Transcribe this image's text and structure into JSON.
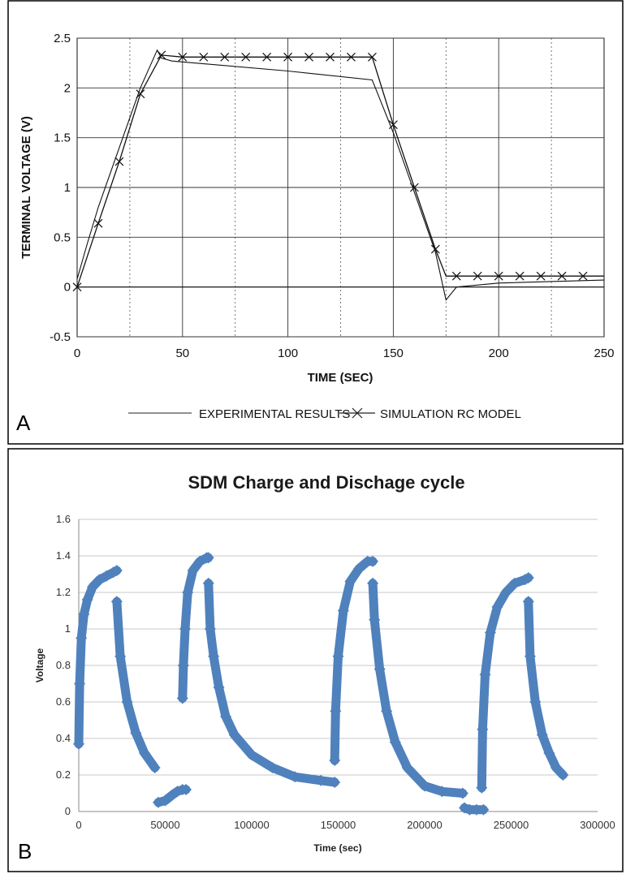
{
  "chart_data": [
    {
      "panel": "A",
      "type": "line",
      "title": "",
      "xlabel": "TIME (SEC)",
      "ylabel": "TERMINAL VOLTAGE (V)",
      "xlim": [
        0,
        250
      ],
      "ylim": [
        -0.5,
        2.5
      ],
      "x_ticks": [
        "0",
        "50",
        "100",
        "150",
        "200",
        "250"
      ],
      "y_ticks": [
        "-0.5",
        "0",
        "0.5",
        "1",
        "1.5",
        "2",
        "2.5"
      ],
      "grid": true,
      "legend": "bottom",
      "series": [
        {
          "name": "EXPERIMENTAL RESULTS",
          "x": [
            0,
            5,
            10,
            20,
            30,
            38,
            40,
            45,
            100,
            140,
            150,
            160,
            170,
            175,
            180,
            200,
            250
          ],
          "y": [
            0.08,
            0.45,
            0.8,
            1.4,
            2.0,
            2.38,
            2.3,
            2.27,
            2.17,
            2.08,
            1.55,
            0.95,
            0.35,
            -0.13,
            0.0,
            0.04,
            0.07
          ]
        },
        {
          "name": "",
          "x": [
            0,
            250
          ],
          "y": [
            0.0,
            0.0
          ]
        },
        {
          "name": "SIMULATION  RC MODEL",
          "x": [
            0,
            10,
            20,
            30,
            40,
            50,
            60,
            70,
            80,
            90,
            100,
            110,
            120,
            130,
            140,
            150,
            160,
            170,
            175,
            180,
            190,
            200,
            210,
            220,
            230,
            240,
            250
          ],
          "y": [
            0.0,
            0.64,
            1.26,
            1.94,
            2.33,
            2.31,
            2.31,
            2.31,
            2.31,
            2.31,
            2.31,
            2.31,
            2.31,
            2.31,
            2.31,
            1.63,
            1.0,
            0.38,
            0.11,
            0.11,
            0.11,
            0.11,
            0.11,
            0.11,
            0.11,
            0.11,
            0.11
          ],
          "marker_x": [
            0,
            10,
            20,
            30,
            40,
            50,
            60,
            70,
            80,
            90,
            100,
            110,
            120,
            130,
            140,
            150,
            160,
            170,
            180,
            190,
            200,
            210,
            220,
            230,
            240
          ],
          "marker_y": [
            0.0,
            0.64,
            1.26,
            1.94,
            2.33,
            2.31,
            2.31,
            2.31,
            2.31,
            2.31,
            2.31,
            2.31,
            2.31,
            2.31,
            2.31,
            1.63,
            1.0,
            0.38,
            0.11,
            0.11,
            0.11,
            0.11,
            0.11,
            0.11,
            0.11
          ]
        }
      ]
    },
    {
      "panel": "B",
      "type": "scatter",
      "title": "SDM Charge and Dischage cycle",
      "xlabel": "Time (sec)",
      "ylabel": "Voltage",
      "xlim": [
        0,
        300000
      ],
      "ylim": [
        0,
        1.6
      ],
      "x_ticks": [
        "0",
        "50000",
        "100000",
        "150000",
        "200000",
        "250000",
        "300000"
      ],
      "y_ticks": [
        "0",
        "0.2",
        "0.4",
        "0.6",
        "0.8",
        "1",
        "1.2",
        "1.4",
        "1.6"
      ],
      "grid": true,
      "color": "#4f81bd",
      "series": [
        {
          "name": "",
          "x": [
            0,
            500,
            1500,
            3000,
            5000,
            8000,
            12000,
            16000,
            20000,
            22000
          ],
          "y": [
            0.37,
            0.7,
            0.95,
            1.08,
            1.16,
            1.23,
            1.27,
            1.29,
            1.31,
            1.32
          ]
        },
        {
          "name": "",
          "x": [
            22000,
            24000,
            28000,
            33000,
            38000,
            44000
          ],
          "y": [
            1.15,
            0.85,
            0.6,
            0.43,
            0.32,
            0.24
          ]
        },
        {
          "name": "",
          "x": [
            46000,
            50000,
            54000,
            57000,
            60000,
            62000
          ],
          "y": [
            0.05,
            0.06,
            0.09,
            0.11,
            0.12,
            0.12
          ]
        },
        {
          "name": "",
          "x": [
            60000,
            60500,
            61500,
            63000,
            66000,
            70000,
            74000,
            75000
          ],
          "y": [
            0.62,
            0.8,
            1.0,
            1.2,
            1.32,
            1.37,
            1.39,
            1.39
          ]
        },
        {
          "name": "",
          "x": [
            75000,
            76000,
            78000,
            81000,
            85000,
            90000,
            100000,
            112000,
            125000,
            140000,
            148000
          ],
          "y": [
            1.25,
            1.0,
            0.85,
            0.68,
            0.52,
            0.42,
            0.31,
            0.24,
            0.19,
            0.17,
            0.16
          ]
        },
        {
          "name": "",
          "x": [
            148000,
            148500,
            150000,
            153000,
            157000,
            162000,
            167000,
            170000
          ],
          "y": [
            0.28,
            0.55,
            0.85,
            1.1,
            1.26,
            1.33,
            1.37,
            1.37
          ]
        },
        {
          "name": "",
          "x": [
            170000,
            171000,
            174000,
            178000,
            183000,
            190000,
            200000,
            210000,
            222000
          ],
          "y": [
            1.25,
            1.05,
            0.78,
            0.55,
            0.38,
            0.24,
            0.14,
            0.11,
            0.1
          ]
        },
        {
          "name": "",
          "x": [
            223000,
            226000,
            230000,
            234000
          ],
          "y": [
            0.02,
            0.01,
            0.01,
            0.01
          ]
        },
        {
          "name": "",
          "x": [
            233000,
            233500,
            235000,
            238000,
            242000,
            247000,
            252000,
            258000,
            260000
          ],
          "y": [
            0.13,
            0.45,
            0.75,
            0.98,
            1.12,
            1.2,
            1.25,
            1.27,
            1.28
          ]
        },
        {
          "name": "",
          "x": [
            260000,
            261000,
            264000,
            268000,
            272000,
            276000,
            280000
          ],
          "y": [
            1.15,
            0.85,
            0.6,
            0.42,
            0.32,
            0.24,
            0.2
          ]
        }
      ]
    }
  ]
}
